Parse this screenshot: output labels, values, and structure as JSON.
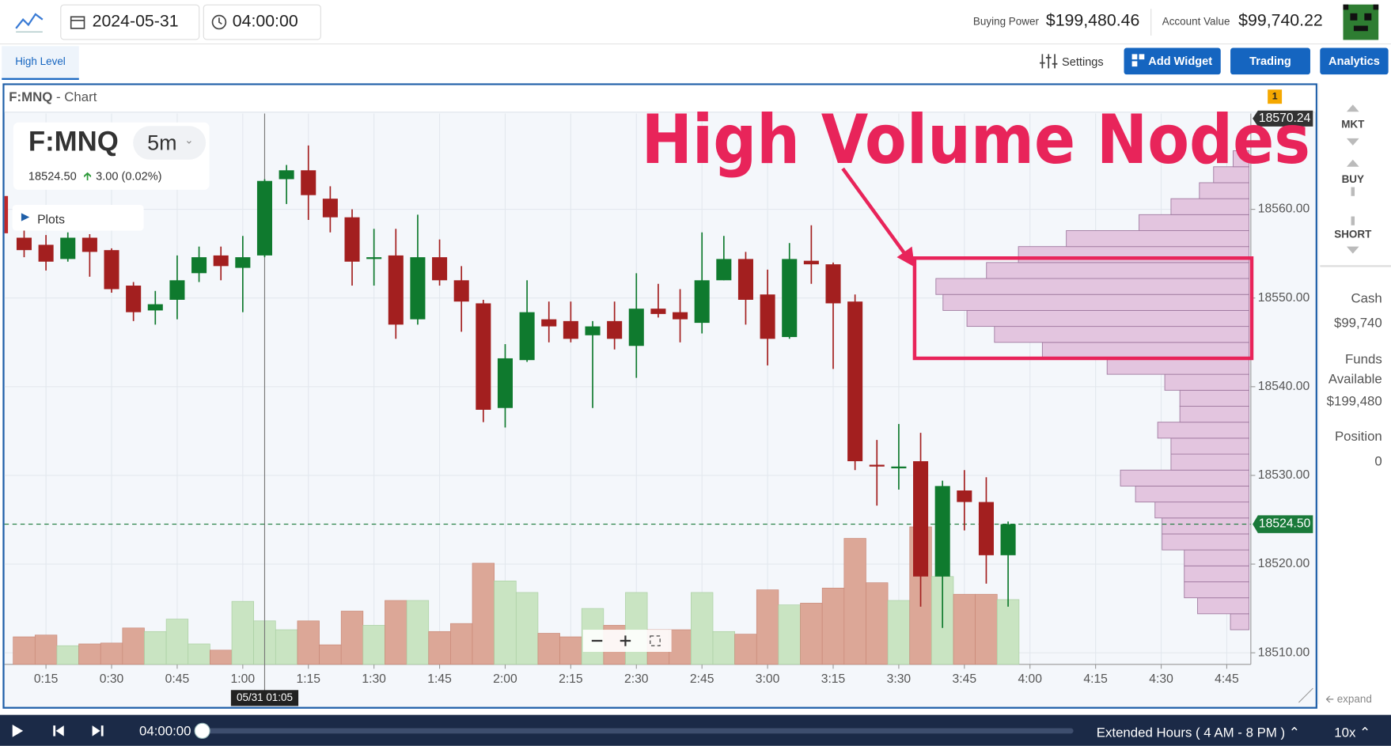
{
  "header": {
    "date": "2024-05-31",
    "time": "04:00:00",
    "buying_power_label": "Buying Power",
    "buying_power": "$199,480.46",
    "account_value_label": "Account Value",
    "account_value": "$99,740.22"
  },
  "toolbar": {
    "tab": "High Level",
    "settings": "Settings",
    "add_widget": "Add Widget",
    "trading": "Trading",
    "analytics": "Analytics"
  },
  "panel": {
    "symbol": "F:MNQ",
    "title_suffix": "- Chart",
    "badge": "1"
  },
  "ticker": {
    "symbol": "F:MNQ",
    "interval": "5m",
    "price": "18524.50",
    "change": "3.00 (0.02%)",
    "plots": "Plots"
  },
  "side": {
    "orders": [
      "MKT",
      "BUY",
      "SHORT"
    ],
    "cash_label": "Cash",
    "cash": "$99,740",
    "funds_label": "Funds Available",
    "funds": "$199,480",
    "position_label": "Position",
    "position": "0",
    "expand": "expand"
  },
  "player": {
    "time": "04:00:00",
    "session": "Extended Hours ( 4 AM - 8 PM )",
    "speed": "10x"
  },
  "chart_data": {
    "type": "candlestick",
    "annotation": "High Volume Nodes",
    "up_color": "#0f7a2e",
    "down_color": "#a31f1f",
    "up_volume_color": "#c9e4c2",
    "down_volume_color": "#dca797",
    "profile_color": "#e3c5df",
    "grid": true,
    "x": [
      10,
      15,
      20,
      25,
      30,
      35,
      40,
      45,
      50,
      55,
      60,
      65,
      70,
      75,
      80,
      85,
      90,
      95,
      100,
      105,
      110,
      115,
      120,
      125,
      130,
      135,
      140,
      145,
      150,
      155,
      160,
      165,
      170,
      175,
      180,
      185,
      190,
      195,
      200,
      205,
      210,
      215,
      220,
      225,
      230,
      235
    ],
    "open": [
      18556.8,
      18556.0,
      18554.4,
      18556.8,
      18555.4,
      18551.4,
      18548.6,
      18549.8,
      18552.8,
      18554.8,
      18553.4,
      18554.8,
      18563.4,
      18564.4,
      18561.2,
      18559.1,
      18554.4,
      18554.8,
      18547.6,
      18554.6,
      18552.0,
      18549.4,
      18537.6,
      18543.0,
      18547.6,
      18547.4,
      18545.8,
      18547.4,
      18544.6,
      18548.8,
      18548.4,
      18547.2,
      18552.0,
      18554.4,
      18550.4,
      18545.6,
      18554.2,
      18553.8,
      18549.6,
      18531.2,
      18530.8,
      18531.6,
      18518.6,
      18528.3,
      18527.0,
      18521.0
    ],
    "high": [
      18557.6,
      18557.1,
      18557.4,
      18557.2,
      18555.6,
      18551.8,
      18550.8,
      18554.8,
      18555.8,
      18555.8,
      18557.0,
      18563.4,
      18565.0,
      18567.2,
      18562.6,
      18560.0,
      18557.8,
      18557.8,
      18559.4,
      18556.6,
      18553.6,
      18549.8,
      18544.8,
      18552.0,
      18549.6,
      18549.6,
      18547.4,
      18549.6,
      18552.8,
      18551.6,
      18551.0,
      18557.4,
      18557.0,
      18555.2,
      18553.2,
      18556.2,
      18558.2,
      18554.0,
      18550.4,
      18534.0,
      18535.8,
      18534.8,
      18529.4,
      18530.6,
      18529.8,
      18524.8
    ],
    "low": [
      18554.6,
      18553.1,
      18554.1,
      18552.4,
      18550.6,
      18547.4,
      18547.0,
      18547.6,
      18551.8,
      18552.0,
      18548.4,
      18554.6,
      18560.6,
      18558.8,
      18557.4,
      18551.4,
      18551.4,
      18545.4,
      18547.0,
      18551.4,
      18546.2,
      18536.0,
      18535.4,
      18542.8,
      18545.0,
      18545.0,
      18537.6,
      18544.2,
      18541.0,
      18547.8,
      18545.0,
      18546.0,
      18552.0,
      18547.0,
      18542.4,
      18545.4,
      18551.6,
      18542.0,
      18530.6,
      18526.6,
      18528.4,
      18515.2,
      18512.8,
      18523.8,
      18517.8,
      18515.2
    ],
    "close": [
      18555.4,
      18554.1,
      18556.8,
      18555.2,
      18551.0,
      18548.4,
      18549.3,
      18552.0,
      18554.6,
      18553.6,
      18554.6,
      18563.2,
      18564.4,
      18561.6,
      18559.1,
      18554.1,
      18554.6,
      18547.0,
      18554.6,
      18552.0,
      18549.6,
      18537.4,
      18543.2,
      18548.4,
      18546.8,
      18545.4,
      18546.8,
      18545.4,
      18548.8,
      18548.2,
      18547.6,
      18552.0,
      18554.4,
      18549.8,
      18545.4,
      18554.4,
      18553.8,
      18549.4,
      18531.6,
      18531.0,
      18531.0,
      18518.6,
      18528.8,
      18527.0,
      18521.0,
      18524.5
    ],
    "volume": [
      31,
      33,
      21,
      23,
      24,
      41,
      37,
      51,
      23,
      16,
      71,
      49,
      39,
      49,
      22,
      60,
      44,
      72,
      72,
      37,
      46,
      114,
      94,
      81,
      35,
      31,
      63,
      44,
      81,
      39,
      39,
      81,
      37,
      34,
      84,
      67,
      69,
      86,
      142,
      92,
      72,
      155,
      99,
      79,
      79,
      73
    ],
    "volume_lim": [
      0,
      180
    ],
    "volume_profile": {
      "bins": [
        18512.6,
        18514.4,
        18516.2,
        18518.0,
        18519.8,
        18521.6,
        18523.4,
        18525.2,
        18527.0,
        18528.8,
        18530.6,
        18532.4,
        18534.2,
        18536.0,
        18537.8,
        18539.6,
        18541.4,
        18543.2,
        18545.0,
        18546.8,
        18548.6,
        18550.4,
        18552.2,
        18554.0,
        18555.8,
        18557.6,
        18559.4,
        18561.2,
        18563.0,
        18564.8,
        18566.6
      ],
      "values": [
        21,
        58,
        73,
        73,
        73,
        98,
        98,
        106,
        128,
        145,
        88,
        88,
        103,
        78,
        78,
        95,
        160,
        233,
        287,
        318,
        345,
        353,
        296,
        260,
        206,
        124,
        88,
        56,
        40,
        18
      ],
      "lim": [
        0,
        400
      ]
    },
    "xlim": [
      5.5,
      290.5
    ],
    "xticks": [
      {
        "value": 15,
        "label": "0:15"
      },
      {
        "value": 30,
        "label": "0:30"
      },
      {
        "value": 45,
        "label": "0:45"
      },
      {
        "value": 60,
        "label": "1:00"
      },
      {
        "value": 75,
        "label": "1:15"
      },
      {
        "value": 90,
        "label": "1:30"
      },
      {
        "value": 105,
        "label": "1:45"
      },
      {
        "value": 120,
        "label": "2:00"
      },
      {
        "value": 135,
        "label": "2:15"
      },
      {
        "value": 150,
        "label": "2:30"
      },
      {
        "value": 165,
        "label": "2:45"
      },
      {
        "value": 180,
        "label": "3:00"
      },
      {
        "value": 195,
        "label": "3:15"
      },
      {
        "value": 210,
        "label": "3:30"
      },
      {
        "value": 225,
        "label": "3:45"
      },
      {
        "value": 240,
        "label": "4:00"
      },
      {
        "value": 255,
        "label": "4:15"
      },
      {
        "value": 270,
        "label": "4:30"
      },
      {
        "value": 285,
        "label": "4:45"
      }
    ],
    "ylim": [
      18508.7,
      18570.8
    ],
    "yticks": [
      {
        "value": 18510,
        "label": "18510.00"
      },
      {
        "value": 18520,
        "label": "18520.00"
      },
      {
        "value": 18530,
        "label": "18530.00"
      },
      {
        "value": 18540,
        "label": "18540.00"
      },
      {
        "value": 18550,
        "label": "18550.00"
      },
      {
        "value": 18560,
        "label": "18560.00"
      }
    ],
    "high_tag": 18570.24,
    "last_price": {
      "value": 18524.5,
      "label": "18524.50"
    },
    "crosshair": {
      "value": 65,
      "label": "05/31 01:05"
    }
  }
}
